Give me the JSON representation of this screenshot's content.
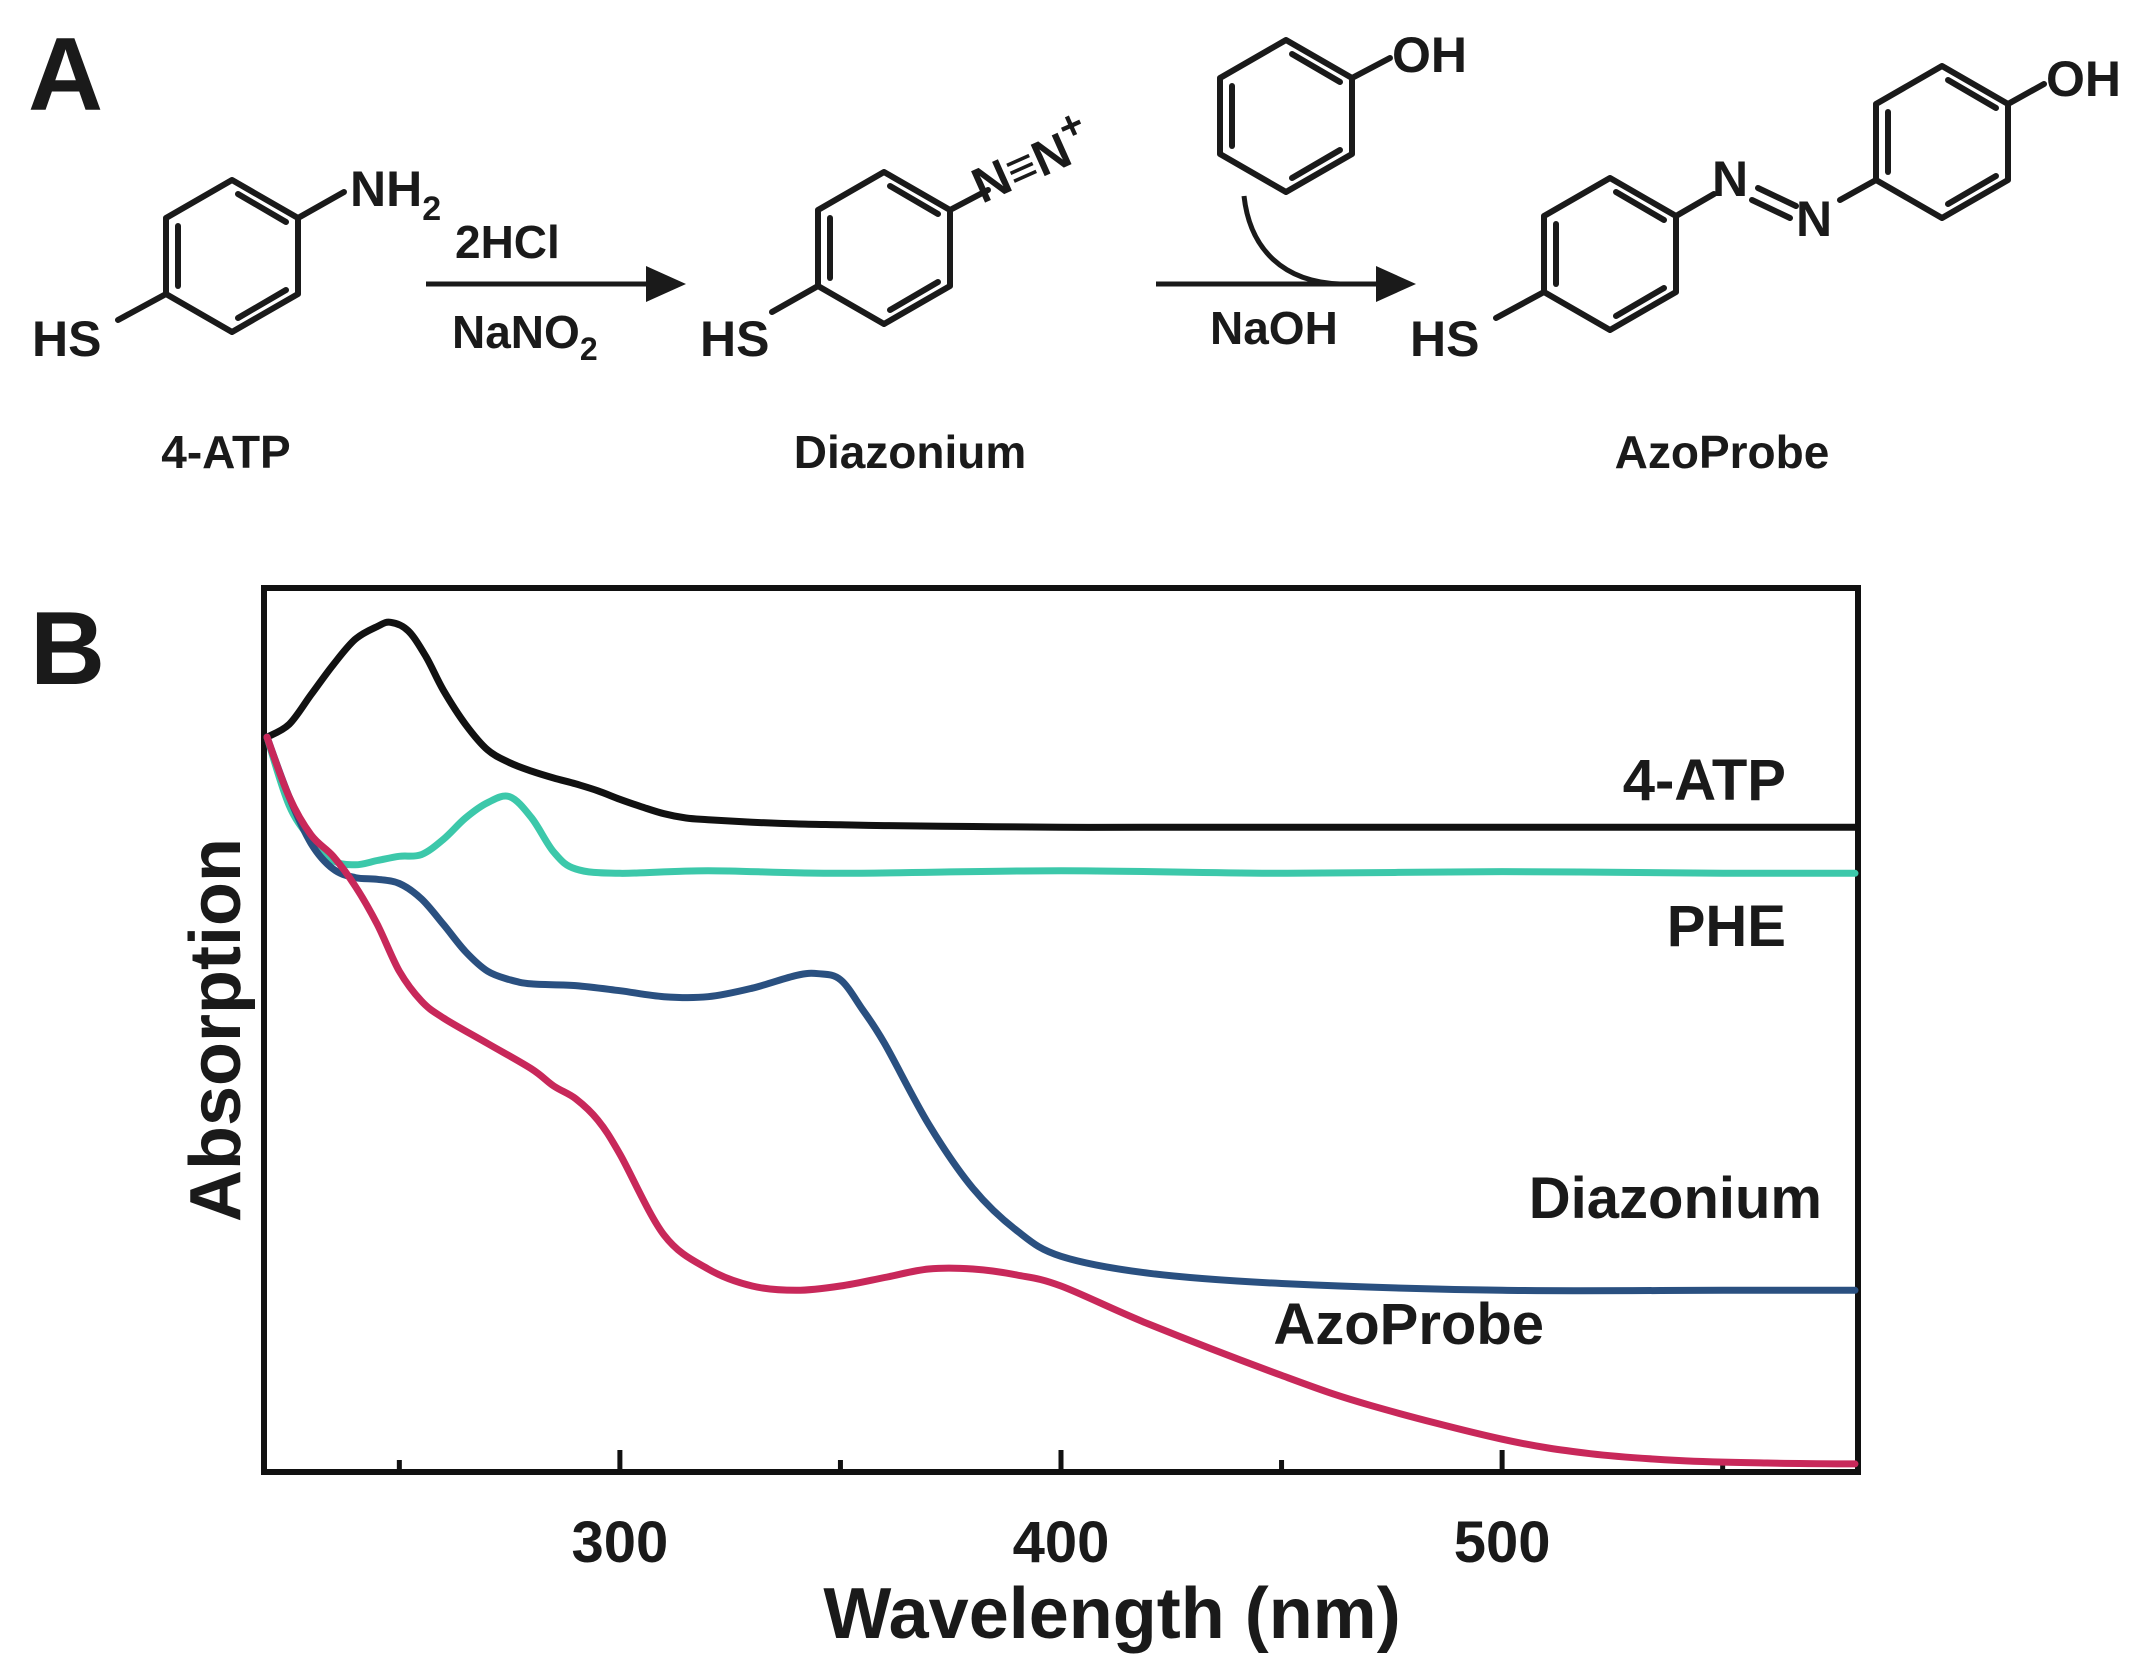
{
  "panel_a": {
    "letter": "A",
    "compounds": [
      {
        "name": "4-ATP",
        "substituent_left": "HS",
        "substituent_right": "NH",
        "subscript": "2"
      },
      {
        "name": "Diazonium",
        "substituent_left": "HS",
        "substituent_right": "N≡N",
        "charge": "+"
      },
      {
        "name": "AzoProbe",
        "substituent_left": "HS",
        "azo_n1": "N",
        "azo_n2": "N",
        "substituent_right": "OH"
      }
    ],
    "phenol": {
      "substituent": "OH"
    },
    "step1": {
      "reagent_top": "2HCl",
      "reagent_bottom": "NaNO",
      "reagent_bottom_sub": "2"
    },
    "step2": {
      "reagent_bottom": "NaOH"
    }
  },
  "chart_data": {
    "panel_letter": "B",
    "type": "line",
    "xlabel": "Wavelength (nm)",
    "ylabel": "Absorption",
    "xlim": [
      220,
      580
    ],
    "ylim": [
      0,
      1
    ],
    "xticks": [
      300,
      400,
      500
    ],
    "minor_xticks": [
      250,
      350,
      450,
      550
    ],
    "y_tick_labels": false,
    "grid": false,
    "series": [
      {
        "name": "4-ATP",
        "color": "#111111",
        "x": [
          220,
          225,
          230,
          235,
          240,
          245,
          248,
          252,
          256,
          260,
          265,
          270,
          275,
          280,
          285,
          290,
          295,
          300,
          305,
          310,
          315,
          320,
          330,
          340,
          350,
          360,
          380,
          400,
          420,
          450,
          500,
          550,
          580
        ],
        "y": [
          0.86,
          0.875,
          0.91,
          0.945,
          0.975,
          0.99,
          0.995,
          0.985,
          0.955,
          0.915,
          0.875,
          0.845,
          0.83,
          0.82,
          0.812,
          0.805,
          0.797,
          0.787,
          0.778,
          0.77,
          0.765,
          0.763,
          0.76,
          0.758,
          0.757,
          0.756,
          0.755,
          0.754,
          0.754,
          0.754,
          0.754,
          0.754,
          0.754
        ]
      },
      {
        "name": "PHE",
        "color": "#3cc8aa",
        "x": [
          220,
          225,
          230,
          235,
          240,
          245,
          250,
          255,
          260,
          265,
          270,
          275,
          280,
          285,
          290,
          300,
          320,
          350,
          400,
          450,
          500,
          550,
          580
        ],
        "y": [
          0.86,
          0.78,
          0.74,
          0.715,
          0.71,
          0.715,
          0.72,
          0.722,
          0.74,
          0.765,
          0.783,
          0.79,
          0.765,
          0.725,
          0.705,
          0.7,
          0.703,
          0.7,
          0.703,
          0.7,
          0.702,
          0.7,
          0.7
        ]
      },
      {
        "name": "Diazonium",
        "color": "#2a5080",
        "x": [
          220,
          225,
          230,
          235,
          240,
          245,
          250,
          255,
          260,
          265,
          270,
          275,
          280,
          290,
          300,
          310,
          320,
          330,
          340,
          345,
          350,
          355,
          360,
          370,
          380,
          390,
          400,
          420,
          450,
          500,
          550,
          580
        ],
        "y": [
          0.86,
          0.79,
          0.735,
          0.705,
          0.695,
          0.693,
          0.688,
          0.67,
          0.64,
          0.608,
          0.585,
          0.575,
          0.57,
          0.568,
          0.562,
          0.555,
          0.555,
          0.565,
          0.58,
          0.582,
          0.575,
          0.54,
          0.5,
          0.405,
          0.33,
          0.28,
          0.25,
          0.23,
          0.218,
          0.21,
          0.21,
          0.21
        ]
      },
      {
        "name": "AzoProbe",
        "color": "#c8285a",
        "x": [
          220,
          225,
          230,
          235,
          240,
          245,
          250,
          255,
          260,
          270,
          280,
          285,
          290,
          295,
          300,
          310,
          320,
          330,
          340,
          350,
          360,
          370,
          380,
          390,
          400,
          420,
          450,
          470,
          500,
          520,
          540,
          560,
          580
        ],
        "y": [
          0.86,
          0.79,
          0.745,
          0.72,
          0.685,
          0.64,
          0.585,
          0.55,
          0.53,
          0.5,
          0.47,
          0.45,
          0.435,
          0.41,
          0.37,
          0.275,
          0.235,
          0.215,
          0.21,
          0.215,
          0.225,
          0.235,
          0.235,
          0.228,
          0.215,
          0.17,
          0.11,
          0.075,
          0.035,
          0.018,
          0.01,
          0.007,
          0.006
        ]
      }
    ]
  }
}
